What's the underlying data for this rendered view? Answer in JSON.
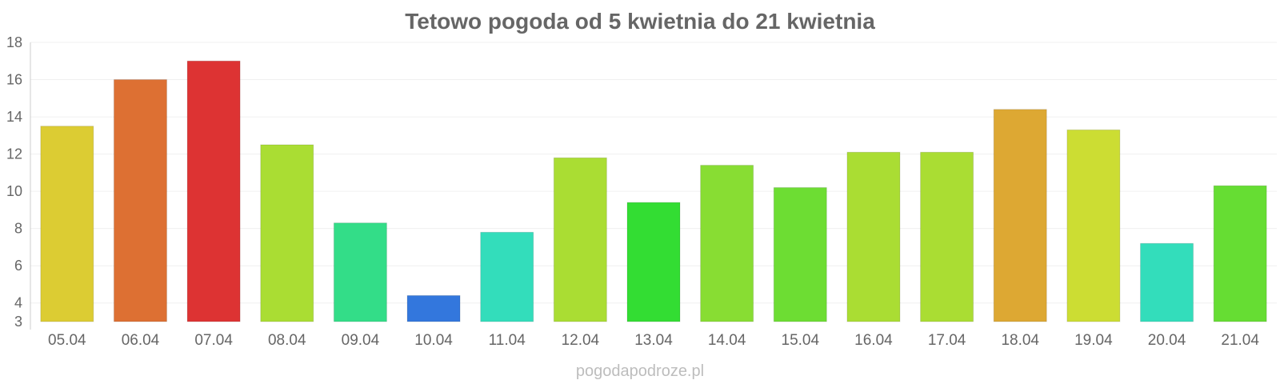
{
  "chart_data": {
    "type": "bar",
    "title": "Tetowo pogoda od 5 kwietnia do 21 kwietnia",
    "xlabel": "",
    "ylabel": "",
    "ylim": [
      3,
      18
    ],
    "yticks": [
      3,
      4,
      6,
      8,
      10,
      12,
      14,
      16,
      18
    ],
    "grid": true,
    "legend": "none",
    "categories": [
      "05.04",
      "06.04",
      "07.04",
      "08.04",
      "09.04",
      "10.04",
      "11.04",
      "12.04",
      "13.04",
      "14.04",
      "15.04",
      "16.04",
      "17.04",
      "18.04",
      "19.04",
      "20.04",
      "21.04"
    ],
    "values": [
      13.5,
      16,
      17,
      12.5,
      8.3,
      4.4,
      7.8,
      11.8,
      9.4,
      11.4,
      10.2,
      12.1,
      12.1,
      14.4,
      13.3,
      7.2,
      10.3
    ],
    "colors": [
      "#dccc33",
      "#dd7033",
      "#dd3333",
      "#aadd33",
      "#33dd88",
      "#3377dd",
      "#33ddbb",
      "#aadd33",
      "#33dd33",
      "#88dd33",
      "#6ddd33",
      "#aadd33",
      "#aadd33",
      "#dda833",
      "#ccdd33",
      "#33ddbb",
      "#66dd33"
    ]
  },
  "watermark": "pogodapodroze.pl"
}
